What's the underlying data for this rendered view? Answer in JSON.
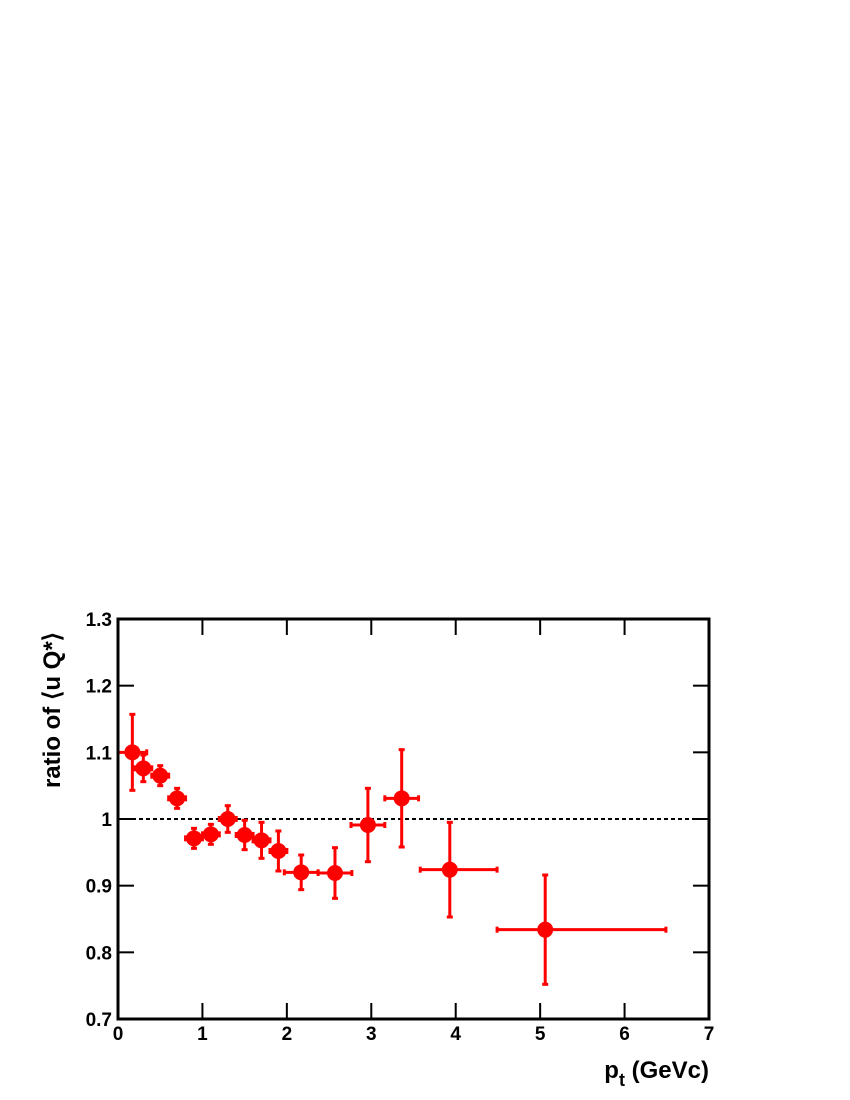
{
  "chart_data": {
    "type": "errorbar",
    "ylabel": "ratio of ⟨u Q*⟩",
    "xlabel": [
      "p",
      "t",
      " (GeVc)"
    ],
    "xlim": [
      0,
      7
    ],
    "ylim": [
      0.7,
      1.3
    ],
    "xticks": [
      0,
      1,
      2,
      3,
      4,
      5,
      6,
      7
    ],
    "yticks": [
      0.7,
      0.8,
      0.9,
      1,
      1.1,
      1.2,
      1.3
    ],
    "reference_line": 1,
    "color": "#ff0000",
    "x": [
      0.17,
      0.3,
      0.5,
      0.7,
      0.9,
      1.1,
      1.3,
      1.5,
      1.7,
      1.9,
      2.17,
      2.57,
      2.96,
      3.36,
      3.93,
      5.06
    ],
    "y": [
      1.1,
      1.076,
      1.065,
      1.031,
      0.971,
      0.977,
      1.0,
      0.976,
      0.968,
      0.952,
      0.92,
      0.919,
      0.991,
      1.031,
      0.924,
      0.834
    ],
    "y_err": [
      0.057,
      0.02,
      0.015,
      0.015,
      0.015,
      0.015,
      0.02,
      0.022,
      0.027,
      0.03,
      0.026,
      0.038,
      0.055,
      0.073,
      0.071,
      0.082
    ],
    "x_err_low": [
      0.17,
      0.1,
      0.1,
      0.1,
      0.1,
      0.1,
      0.1,
      0.1,
      0.1,
      0.1,
      0.2,
      0.2,
      0.2,
      0.2,
      0.35,
      0.57
    ],
    "x_err_high": [
      0.17,
      0.1,
      0.1,
      0.1,
      0.1,
      0.1,
      0.1,
      0.1,
      0.1,
      0.1,
      0.2,
      0.2,
      0.2,
      0.2,
      0.56,
      1.43
    ]
  }
}
